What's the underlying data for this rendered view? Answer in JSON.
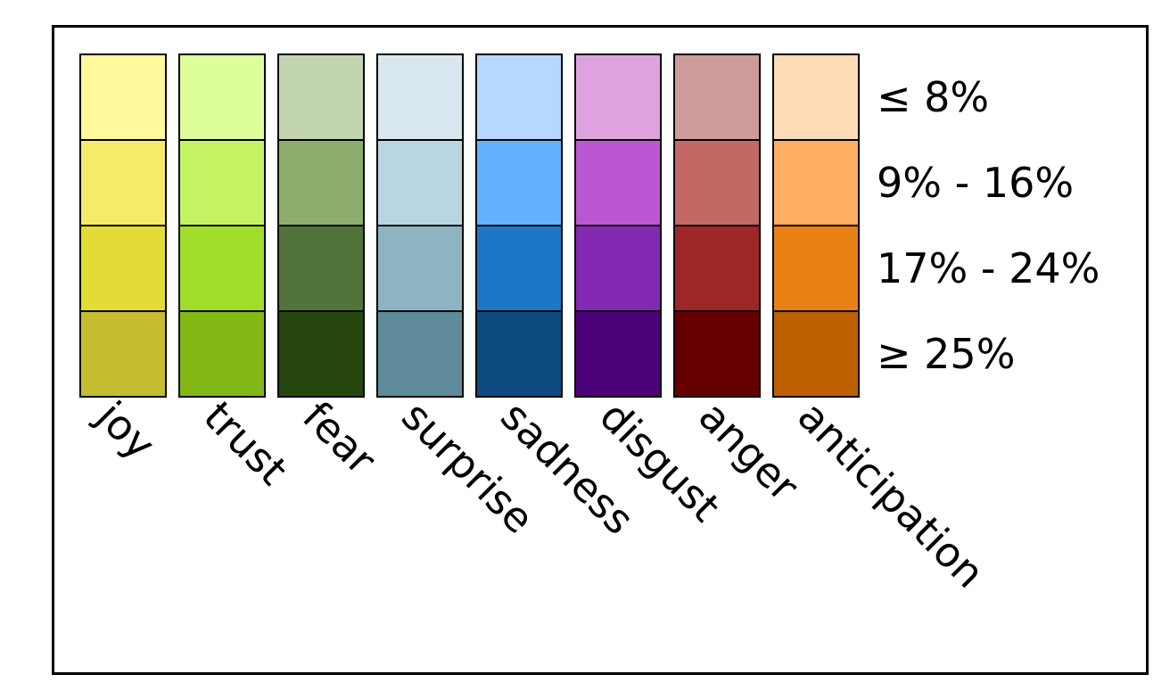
{
  "legend": {
    "emotions": [
      {
        "name": "joy",
        "colors": [
          "#FFF99C",
          "#F4EB69",
          "#E4DC36",
          "#C4BD32"
        ]
      },
      {
        "name": "trust",
        "colors": [
          "#DDFE9A",
          "#C3F362",
          "#A3DD2B",
          "#83B816"
        ]
      },
      {
        "name": "fear",
        "colors": [
          "#C2D5B0",
          "#8CAE6D",
          "#50733A",
          "#27460F"
        ]
      },
      {
        "name": "surprise",
        "colors": [
          "#D9E7EE",
          "#B8D6E1",
          "#8EB3C1",
          "#5E8A9A"
        ]
      },
      {
        "name": "sadness",
        "colors": [
          "#B6D8FE",
          "#63B2FE",
          "#1D77C8",
          "#0D4A80"
        ]
      },
      {
        "name": "disgust",
        "colors": [
          "#DEA3DE",
          "#BC57D3",
          "#8429B4",
          "#4B0078"
        ]
      },
      {
        "name": "anger",
        "colors": [
          "#CD9B98",
          "#C26966",
          "#9D2727",
          "#660000"
        ]
      },
      {
        "name": "anticipation",
        "colors": [
          "#FFDBB6",
          "#FFAE62",
          "#E98117",
          "#BC6000"
        ]
      }
    ],
    "tiers": [
      "≤ 8%",
      "9% - 16%",
      "17% - 24%",
      "≥ 25%"
    ]
  }
}
